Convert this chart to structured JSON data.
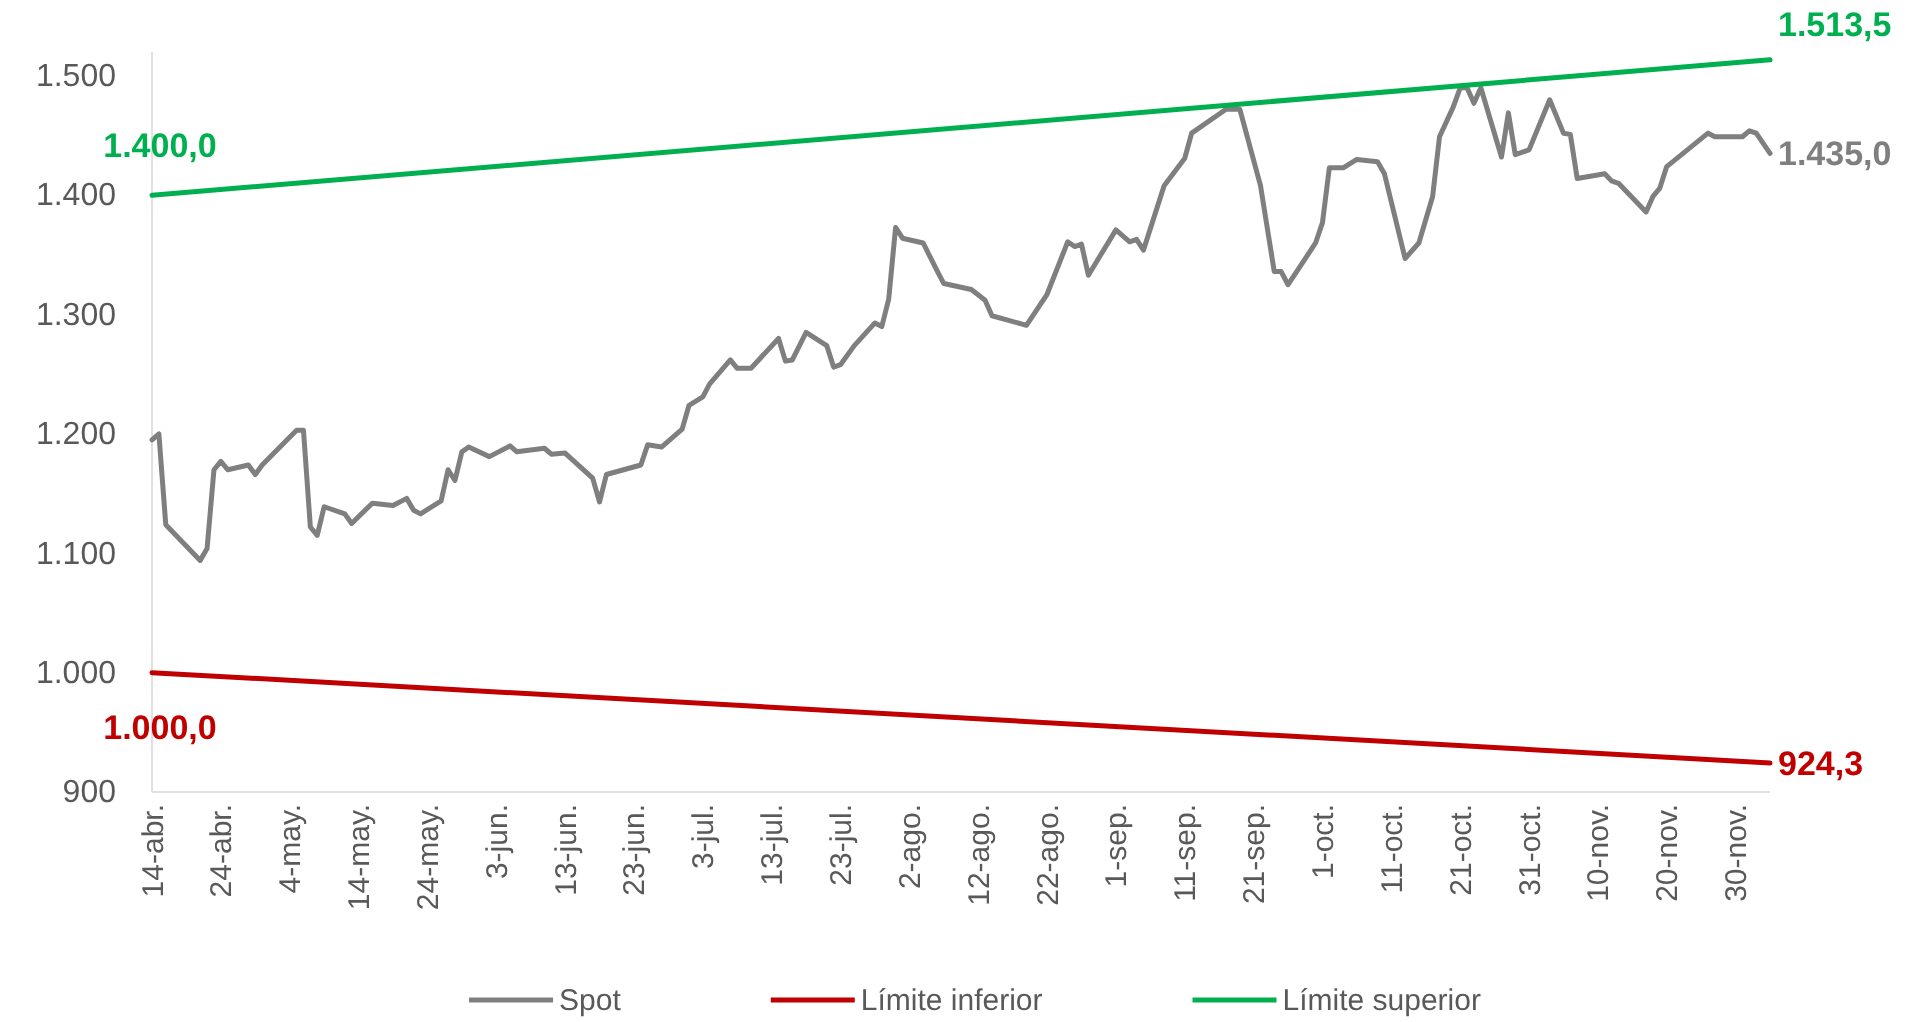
{
  "chart_data": {
    "type": "line",
    "x": [
      "--04-14",
      "--04-15",
      "--04-16",
      "--04-21",
      "--04-22",
      "--04-23",
      "--04-24",
      "--04-25",
      "--04-28",
      "--04-29",
      "--04-30",
      "--05-05",
      "--05-06",
      "--05-07",
      "--05-08",
      "--05-09",
      "--05-12",
      "--05-13",
      "--05-16",
      "--05-19",
      "--05-21",
      "--05-22",
      "--05-23",
      "--05-26",
      "--05-27",
      "--05-28",
      "--05-29",
      "--05-30",
      "--06-02",
      "--06-05",
      "--06-06",
      "--06-10",
      "--06-11",
      "--06-13",
      "--06-17",
      "--06-18",
      "--06-19",
      "--06-24",
      "--06-25",
      "--06-27",
      "--06-30",
      "--07-01",
      "--07-03",
      "--07-04",
      "--07-07",
      "--07-08",
      "--07-10",
      "--07-14",
      "--07-15",
      "--07-16",
      "--07-18",
      "--07-21",
      "--07-22",
      "--07-23",
      "--07-25",
      "--07-28",
      "--07-29",
      "--07-30",
      "--07-31",
      "--08-01",
      "--08-04",
      "--08-06",
      "--08-07",
      "--08-11",
      "--08-13",
      "--08-14",
      "--08-19",
      "--08-22",
      "--08-25",
      "--08-26",
      "--08-27",
      "--08-28",
      "--09-01",
      "--09-03",
      "--09-04",
      "--09-05",
      "--09-08",
      "--09-11",
      "--09-12",
      "--09-17",
      "--09-19",
      "--09-22",
      "--09-24",
      "--09-25",
      "--09-26",
      "--09-30",
      "--10-01",
      "--10-02",
      "--10-04",
      "--10-06",
      "--10-09",
      "--10-10",
      "--10-13",
      "--10-15",
      "--10-17",
      "--10-18",
      "--10-20",
      "--10-21",
      "--10-22",
      "--10-23",
      "--10-24",
      "--10-27",
      "--10-28",
      "--10-29",
      "--10-31",
      "--11-03",
      "--11-05",
      "--11-06",
      "--11-07",
      "--11-11",
      "--11-12",
      "--11-13",
      "--11-17",
      "--11-18",
      "--11-19",
      "--11-20",
      "--11-26",
      "--11-27",
      "--12-01",
      "--12-02",
      "--12-03",
      "--12-05"
    ],
    "series": [
      {
        "name": "Spot",
        "color": "#7f7f7f",
        "values": [
          1195,
          1200,
          1124,
          1094,
          1104,
          1170,
          1177,
          1170,
          1174,
          1166,
          1174,
          1203,
          1203,
          1122,
          1115,
          1139,
          1133,
          1125,
          1142,
          1140,
          1146,
          1136,
          1133,
          1144,
          1170,
          1161,
          1185,
          1189,
          1181,
          1190,
          1185,
          1188,
          1183,
          1184,
          1163,
          1143,
          1166,
          1174,
          1191,
          1189,
          1204,
          1224,
          1231,
          1242,
          1262,
          1255,
          1255,
          1280,
          1261,
          1262,
          1285,
          1274,
          1256,
          1258,
          1274,
          1293,
          1290,
          1313,
          1373,
          1364,
          1360,
          1337,
          1326,
          1321,
          1312,
          1299,
          1291,
          1317,
          1361,
          1357,
          1359,
          1333,
          1371,
          1361,
          1363,
          1354,
          1408,
          1431,
          1452,
          1472,
          1472,
          1408,
          1336,
          1336,
          1325,
          1360,
          1377,
          1423,
          1423,
          1430,
          1428,
          1418,
          1347,
          1360,
          1399,
          1449,
          1474,
          1490,
          1490,
          1477,
          1490,
          1432,
          1469,
          1434,
          1438,
          1480,
          1452,
          1451,
          1414,
          1418,
          1412,
          1410,
          1386,
          1399,
          1406,
          1424,
          1452,
          1449,
          1449,
          1454,
          1452,
          1435
        ],
        "value_labels": [
          null,
          null,
          null,
          null,
          null,
          null,
          null,
          null,
          null,
          null,
          null,
          null,
          null,
          null,
          null,
          null,
          null,
          null,
          null,
          null,
          null,
          null,
          null,
          null,
          null,
          null,
          null,
          null,
          null,
          null,
          null,
          null,
          null,
          null,
          null,
          null,
          null,
          null,
          null,
          null,
          null,
          null,
          null,
          null,
          null,
          null,
          null,
          null,
          null,
          null,
          null,
          null,
          null,
          null,
          null,
          null,
          null,
          null,
          null,
          null,
          null,
          null,
          null,
          null,
          null,
          null,
          null,
          null,
          null,
          null,
          null,
          null,
          null,
          null,
          null,
          null,
          null,
          null,
          null,
          null,
          null,
          null,
          null,
          null,
          null,
          null,
          null,
          null,
          null,
          null,
          null,
          null,
          null,
          null,
          null,
          null,
          null,
          null,
          null,
          null,
          null,
          null,
          null,
          null,
          null,
          null,
          null,
          null,
          null,
          null,
          null,
          null,
          null,
          null,
          null,
          null,
          null,
          null,
          null,
          null,
          null,
          "1.435,0"
        ]
      },
      {
        "name": "Límite inferior",
        "color": "#c00000",
        "x": [
          "--04-14",
          "--12-05"
        ],
        "values": [
          1000,
          924.3
        ],
        "value_labels": [
          "1.000,0",
          "924,3"
        ]
      },
      {
        "name": "Límite superior",
        "color": "#00b050",
        "x": [
          "--04-14",
          "--12-05"
        ],
        "values": [
          1400,
          1513.5
        ],
        "value_labels": [
          "1.400,0",
          "1.513,5"
        ]
      }
    ],
    "xlim": [
      "--04-14",
      "--12-05"
    ],
    "xticks": [
      {
        "value": "--04-14",
        "label": "14-abr."
      },
      {
        "value": "--04-24",
        "label": "24-abr."
      },
      {
        "value": "--05-04",
        "label": "4-may."
      },
      {
        "value": "--05-14",
        "label": "14-may."
      },
      {
        "value": "--05-24",
        "label": "24-may."
      },
      {
        "value": "--06-03",
        "label": "3-jun."
      },
      {
        "value": "--06-13",
        "label": "13-jun."
      },
      {
        "value": "--06-23",
        "label": "23-jun."
      },
      {
        "value": "--07-03",
        "label": "3-jul."
      },
      {
        "value": "--07-13",
        "label": "13-jul."
      },
      {
        "value": "--07-23",
        "label": "23-jul."
      },
      {
        "value": "--08-02",
        "label": "2-ago."
      },
      {
        "value": "--08-12",
        "label": "12-ago."
      },
      {
        "value": "--08-22",
        "label": "22-ago."
      },
      {
        "value": "--09-01",
        "label": "1-sep."
      },
      {
        "value": "--09-11",
        "label": "11-sep."
      },
      {
        "value": "--09-21",
        "label": "21-sep."
      },
      {
        "value": "--10-01",
        "label": "1-oct."
      },
      {
        "value": "--10-11",
        "label": "11-oct."
      },
      {
        "value": "--10-21",
        "label": "21-oct."
      },
      {
        "value": "--10-31",
        "label": "31-oct."
      },
      {
        "value": "--11-10",
        "label": "10-nov."
      },
      {
        "value": "--11-20",
        "label": "20-nov."
      },
      {
        "value": "--11-30",
        "label": "30-nov."
      }
    ],
    "ylim": [
      900,
      1520
    ],
    "yticks": [
      {
        "value": 900,
        "label": "900"
      },
      {
        "value": 1000,
        "label": "1.000"
      },
      {
        "value": 1100,
        "label": "1.100"
      },
      {
        "value": 1200,
        "label": "1.200"
      },
      {
        "value": 1300,
        "label": "1.300"
      },
      {
        "value": 1400,
        "label": "1.400"
      },
      {
        "value": 1500,
        "label": "1.500"
      }
    ],
    "legend": "bottom"
  }
}
